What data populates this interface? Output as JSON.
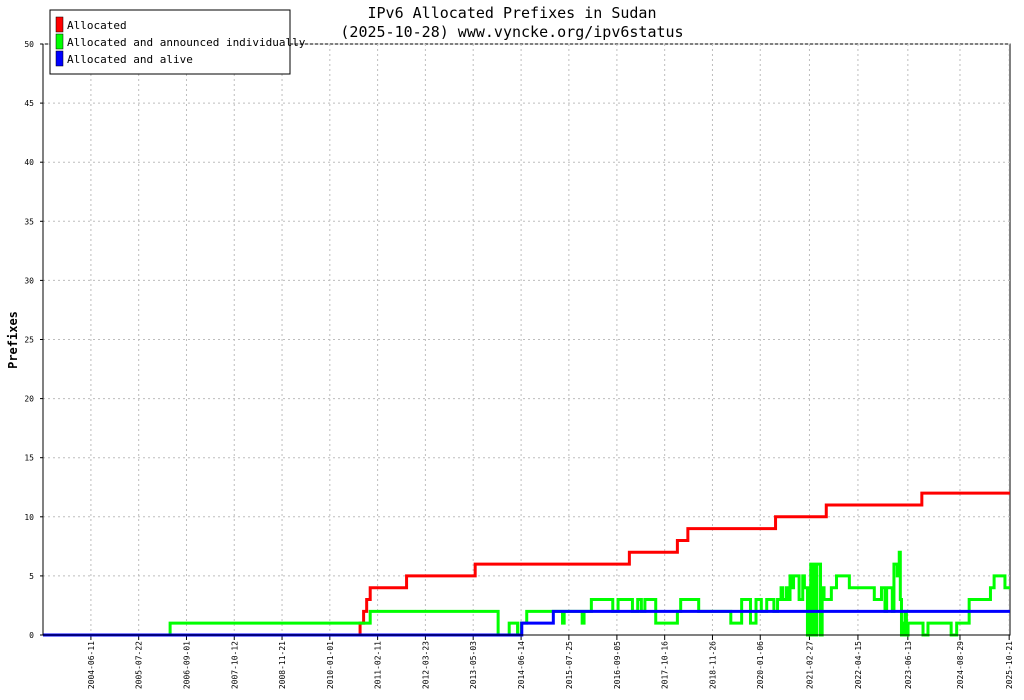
{
  "chart_data": {
    "type": "line",
    "title": "IPv6 Allocated Prefixes in Sudan",
    "subtitle": "(2025-10-28) www.vyncke.org/ipv6status",
    "ylabel": "Prefixes",
    "xlabel": "",
    "ylim": [
      0,
      50
    ],
    "yticks": [
      0,
      5,
      10,
      15,
      20,
      25,
      30,
      35,
      40,
      45,
      50
    ],
    "xlim": [
      "2003-05-01",
      "2025-10-28"
    ],
    "xticks": [
      "2004-06-11",
      "2005-07-22",
      "2006-09-01",
      "2007-10-12",
      "2008-11-21",
      "2010-01-01",
      "2011-02-11",
      "2012-03-23",
      "2013-05-03",
      "2014-06-14",
      "2015-07-25",
      "2016-09-05",
      "2017-10-16",
      "2018-11-26",
      "2020-01-06",
      "2021-02-27",
      "2022-04-15",
      "2023-06-13",
      "2024-08-29",
      "2025-10-21"
    ],
    "grid": true,
    "legend_position": "top-left",
    "series": [
      {
        "name": "Allocated",
        "color": "#ff0000",
        "step": true,
        "points": [
          [
            "2003-05-01",
            0
          ],
          [
            "2010-09-01",
            0
          ],
          [
            "2010-09-15",
            1
          ],
          [
            "2010-10-15",
            2
          ],
          [
            "2010-11-10",
            3
          ],
          [
            "2010-12-10",
            4
          ],
          [
            "2011-10-15",
            5
          ],
          [
            "2013-05-20",
            6
          ],
          [
            "2016-12-20",
            7
          ],
          [
            "2018-02-01",
            8
          ],
          [
            "2018-05-01",
            9
          ],
          [
            "2020-05-15",
            10
          ],
          [
            "2021-07-20",
            11
          ],
          [
            "2023-10-10",
            12
          ],
          [
            "2025-10-28",
            12
          ]
        ]
      },
      {
        "name": "Allocated and announced individually",
        "color": "#00ff00",
        "step": true,
        "points": [
          [
            "2003-05-01",
            0
          ],
          [
            "2006-03-15",
            0
          ],
          [
            "2006-04-15",
            1
          ],
          [
            "2010-09-10",
            1
          ],
          [
            "2010-12-10",
            2
          ],
          [
            "2013-12-01",
            2
          ],
          [
            "2013-12-01",
            0
          ],
          [
            "2014-03-01",
            0
          ],
          [
            "2014-03-05",
            1
          ],
          [
            "2014-05-15",
            1
          ],
          [
            "2014-05-15",
            0
          ],
          [
            "2014-06-15",
            0
          ],
          [
            "2014-06-15",
            1
          ],
          [
            "2014-08-01",
            1
          ],
          [
            "2014-08-01",
            2
          ],
          [
            "2015-05-15",
            2
          ],
          [
            "2015-06-01",
            1
          ],
          [
            "2015-06-15",
            2
          ],
          [
            "2015-11-15",
            2
          ],
          [
            "2015-11-15",
            1
          ],
          [
            "2015-12-01",
            2
          ],
          [
            "2016-02-01",
            3
          ],
          [
            "2016-08-01",
            3
          ],
          [
            "2016-08-01",
            2
          ],
          [
            "2016-09-15",
            3
          ],
          [
            "2017-01-15",
            3
          ],
          [
            "2017-01-15",
            2
          ],
          [
            "2017-03-01",
            3
          ],
          [
            "2017-04-01",
            2
          ],
          [
            "2017-05-01",
            3
          ],
          [
            "2017-08-01",
            3
          ],
          [
            "2017-08-01",
            1
          ],
          [
            "2018-02-01",
            1
          ],
          [
            "2018-02-01",
            2
          ],
          [
            "2018-03-01",
            3
          ],
          [
            "2018-08-01",
            3
          ],
          [
            "2018-08-01",
            2
          ],
          [
            "2019-05-01",
            2
          ],
          [
            "2019-05-01",
            1
          ],
          [
            "2019-08-01",
            1
          ],
          [
            "2019-08-01",
            3
          ],
          [
            "2019-10-15",
            3
          ],
          [
            "2019-10-15",
            1
          ],
          [
            "2019-12-01",
            1
          ],
          [
            "2019-12-01",
            3
          ],
          [
            "2020-01-15",
            3
          ],
          [
            "2020-01-15",
            2
          ],
          [
            "2020-03-01",
            3
          ],
          [
            "2020-05-01",
            2
          ],
          [
            "2020-06-01",
            3
          ],
          [
            "2020-07-01",
            4
          ],
          [
            "2020-07-15",
            3
          ],
          [
            "2020-08-15",
            4
          ],
          [
            "2020-09-01",
            3
          ],
          [
            "2020-09-15",
            5
          ],
          [
            "2020-10-01",
            4
          ],
          [
            "2020-10-15",
            5
          ],
          [
            "2020-12-01",
            5
          ],
          [
            "2020-12-01",
            3
          ],
          [
            "2021-01-01",
            5
          ],
          [
            "2021-01-15",
            4
          ],
          [
            "2021-02-10",
            0
          ],
          [
            "2021-02-25",
            4
          ],
          [
            "2021-03-10",
            6
          ],
          [
            "2021-03-20",
            0
          ],
          [
            "2021-04-01",
            6
          ],
          [
            "2021-04-15",
            0
          ],
          [
            "2021-05-01",
            6
          ],
          [
            "2021-06-01",
            6
          ],
          [
            "2021-06-01",
            0
          ],
          [
            "2021-06-15",
            4
          ],
          [
            "2021-07-01",
            4
          ],
          [
            "2021-07-01",
            3
          ],
          [
            "2021-09-01",
            4
          ],
          [
            "2021-10-15",
            4
          ],
          [
            "2021-10-15",
            5
          ],
          [
            "2022-02-01",
            5
          ],
          [
            "2022-02-01",
            4
          ],
          [
            "2022-09-01",
            4
          ],
          [
            "2022-09-01",
            3
          ],
          [
            "2022-11-01",
            4
          ],
          [
            "2022-12-01",
            2
          ],
          [
            "2022-12-15",
            4
          ],
          [
            "2023-02-01",
            2
          ],
          [
            "2023-02-15",
            6
          ],
          [
            "2023-03-15",
            5
          ],
          [
            "2023-04-01",
            7
          ],
          [
            "2023-04-10",
            3
          ],
          [
            "2023-04-20",
            0
          ],
          [
            "2023-05-01",
            1
          ],
          [
            "2023-05-10",
            0
          ],
          [
            "2023-05-20",
            2
          ],
          [
            "2023-06-01",
            0
          ],
          [
            "2023-06-15",
            1
          ],
          [
            "2023-10-20",
            1
          ],
          [
            "2023-10-20",
            0
          ],
          [
            "2023-12-01",
            0
          ],
          [
            "2023-12-01",
            1
          ],
          [
            "2024-06-15",
            1
          ],
          [
            "2024-06-15",
            0
          ],
          [
            "2024-08-01",
            1
          ],
          [
            "2024-11-15",
            1
          ],
          [
            "2024-11-15",
            3
          ],
          [
            "2025-05-15",
            3
          ],
          [
            "2025-05-15",
            4
          ],
          [
            "2025-06-15",
            5
          ],
          [
            "2025-09-15",
            5
          ],
          [
            "2025-09-15",
            4
          ],
          [
            "2025-10-28",
            4
          ]
        ]
      },
      {
        "name": "Allocated and alive",
        "color": "#0000ff",
        "step": true,
        "points": [
          [
            "2003-05-01",
            0
          ],
          [
            "2014-06-20",
            0
          ],
          [
            "2014-06-20",
            1
          ],
          [
            "2015-03-15",
            1
          ],
          [
            "2015-03-15",
            2
          ],
          [
            "2025-10-28",
            2
          ]
        ]
      }
    ]
  }
}
